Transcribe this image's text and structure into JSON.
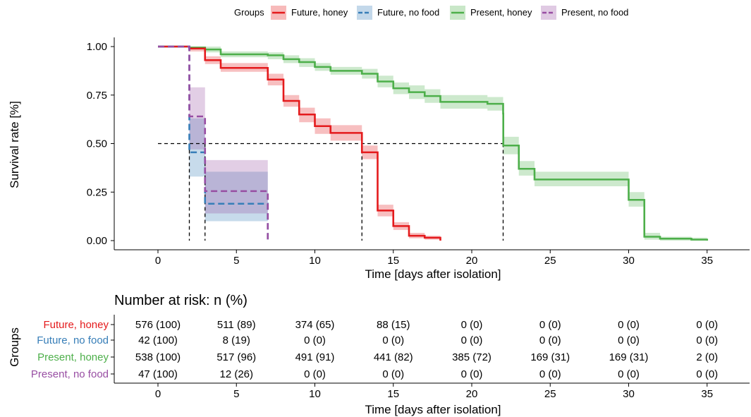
{
  "legend": {
    "title": "Groups",
    "entries": [
      {
        "name": "Future, honey",
        "color": "#e41a1c",
        "dash": false
      },
      {
        "name": "Future, no food",
        "color": "#377eb8",
        "dash": true
      },
      {
        "name": "Present, honey",
        "color": "#4daf4a",
        "dash": false
      },
      {
        "name": "Present, no food",
        "color": "#984ea3",
        "dash": true
      }
    ],
    "position": "top"
  },
  "chart_data": [
    {
      "type": "line",
      "subtype": "kaplan-meier step curve",
      "xlabel": "Time [days after isolation]",
      "ylabel": "Survival rate [%]",
      "xlim": [
        -2.5,
        37
      ],
      "ylim": [
        -0.05,
        1.05
      ],
      "x_ticks": [
        0,
        5,
        10,
        15,
        20,
        25,
        30,
        35
      ],
      "y_ticks": [
        0,
        0.25,
        0.5,
        0.75,
        1.0
      ],
      "y_tick_labels": [
        "0.00",
        "0.25",
        "0.50",
        "0.75",
        "1.00"
      ],
      "grid": false,
      "median_reference": {
        "y": 0.5,
        "x_values": [
          2,
          3,
          13,
          22
        ]
      },
      "series": [
        {
          "name": "Future, honey",
          "color": "#e41a1c",
          "dash": false,
          "steps": [
            [
              0,
              1.0
            ],
            [
              2,
              0.99
            ],
            [
              3,
              0.93
            ],
            [
              4,
              0.89
            ],
            [
              7,
              0.83
            ],
            [
              8,
              0.72
            ],
            [
              9,
              0.65
            ],
            [
              10,
              0.59
            ],
            [
              11,
              0.555
            ],
            [
              13,
              0.455
            ],
            [
              14,
              0.155
            ],
            [
              15,
              0.075
            ],
            [
              16,
              0.025
            ],
            [
              17,
              0.015
            ],
            [
              18,
              0.0
            ]
          ],
          "ci_lower": [
            1.0,
            0.975,
            0.91,
            0.87,
            0.8,
            0.69,
            0.61,
            0.55,
            0.515,
            0.42,
            0.125,
            0.055,
            0.012,
            0.005,
            0.0
          ],
          "ci_upper": [
            1.0,
            1.0,
            0.95,
            0.915,
            0.86,
            0.75,
            0.685,
            0.63,
            0.595,
            0.49,
            0.185,
            0.095,
            0.04,
            0.025,
            0.0
          ],
          "end_x": 18
        },
        {
          "name": "Future, no food",
          "color": "#377eb8",
          "dash": true,
          "steps": [
            [
              0,
              1.0
            ],
            [
              2,
              0.455
            ],
            [
              3,
              0.19
            ],
            [
              7,
              0.0
            ]
          ],
          "ci_lower": [
            1.0,
            0.33,
            0.1,
            0.0
          ],
          "ci_upper": [
            1.0,
            0.63,
            0.355,
            0.0
          ],
          "end_x": 7
        },
        {
          "name": "Present, honey",
          "color": "#4daf4a",
          "dash": false,
          "steps": [
            [
              0,
              1.0
            ],
            [
              2,
              0.995
            ],
            [
              3,
              0.985
            ],
            [
              4,
              0.96
            ],
            [
              7,
              0.955
            ],
            [
              8,
              0.935
            ],
            [
              9,
              0.92
            ],
            [
              10,
              0.895
            ],
            [
              11,
              0.875
            ],
            [
              13,
              0.86
            ],
            [
              14,
              0.82
            ],
            [
              15,
              0.785
            ],
            [
              16,
              0.765
            ],
            [
              17,
              0.745
            ],
            [
              18,
              0.715
            ],
            [
              21,
              0.705
            ],
            [
              22,
              0.655
            ],
            [
              22.01,
              0.49
            ],
            [
              23,
              0.37
            ],
            [
              24,
              0.315
            ],
            [
              30,
              0.21
            ],
            [
              31,
              0.02
            ],
            [
              32,
              0.01
            ],
            [
              34,
              0.005
            ],
            [
              35,
              0.0
            ]
          ],
          "ci_lower": [
            1.0,
            0.985,
            0.97,
            0.945,
            0.935,
            0.915,
            0.895,
            0.875,
            0.855,
            0.835,
            0.79,
            0.755,
            0.73,
            0.71,
            0.68,
            0.67,
            0.61,
            0.445,
            0.335,
            0.28,
            0.175,
            0.005,
            0.0,
            0.0,
            0.0
          ],
          "ci_upper": [
            1.0,
            1.0,
            1.0,
            0.975,
            0.97,
            0.955,
            0.94,
            0.915,
            0.895,
            0.885,
            0.85,
            0.815,
            0.8,
            0.78,
            0.75,
            0.74,
            0.69,
            0.535,
            0.41,
            0.355,
            0.25,
            0.04,
            0.02,
            0.015,
            0.0
          ],
          "end_x": 35
        },
        {
          "name": "Present, no food",
          "color": "#984ea3",
          "dash": true,
          "steps": [
            [
              0,
              1.0
            ],
            [
              2,
              0.64
            ],
            [
              3,
              0.255
            ],
            [
              7,
              0.0
            ]
          ],
          "ci_lower": [
            1.0,
            0.47,
            0.14,
            0.0
          ],
          "ci_upper": [
            1.0,
            0.79,
            0.415,
            0.0
          ],
          "end_x": 7
        }
      ]
    },
    {
      "type": "table",
      "title": "Number at risk: n (%)",
      "xlabel": "Time [days after isolation]",
      "ylabel": "Groups",
      "columns": [
        0,
        5,
        10,
        15,
        20,
        25,
        30,
        35
      ],
      "rows": [
        {
          "group": "Future, honey",
          "color": "#e41a1c",
          "cells": [
            "576 (100)",
            "511 (89)",
            "374 (65)",
            "88 (15)",
            "0 (0)",
            "0 (0)",
            "0 (0)",
            "0 (0)"
          ]
        },
        {
          "group": "Future, no food",
          "color": "#377eb8",
          "cells": [
            "42 (100)",
            "8 (19)",
            "0 (0)",
            "0 (0)",
            "0 (0)",
            "0 (0)",
            "0 (0)",
            "0 (0)"
          ]
        },
        {
          "group": "Present, honey",
          "color": "#4daf4a",
          "cells": [
            "538 (100)",
            "517 (96)",
            "491 (91)",
            "441 (82)",
            "385 (72)",
            "169 (31)",
            "169 (31)",
            "2 (0)"
          ]
        },
        {
          "group": "Present, no food",
          "color": "#984ea3",
          "cells": [
            "47 (100)",
            "12 (26)",
            "0 (0)",
            "0 (0)",
            "0 (0)",
            "0 (0)",
            "0 (0)",
            "0 (0)"
          ]
        }
      ]
    }
  ]
}
